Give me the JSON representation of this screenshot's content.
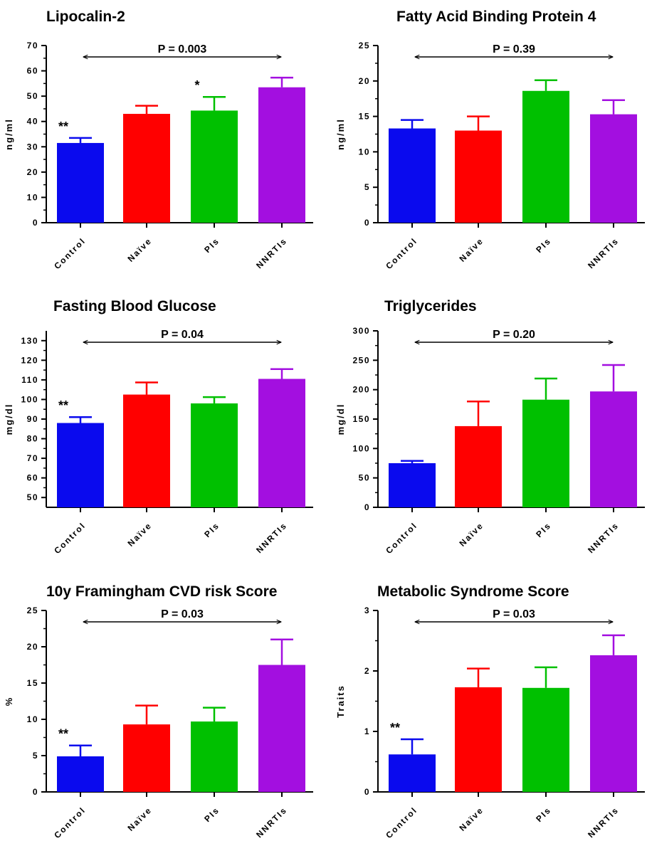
{
  "categories": [
    "Control",
    "Naïve",
    "PIs",
    "NNRTIs"
  ],
  "colors": [
    "#0a0aee",
    "#ff0000",
    "#00c000",
    "#a30fe0"
  ],
  "chart_data": [
    {
      "type": "bar",
      "title": "Lipocalin-2",
      "ylabel": "ng/ml",
      "ylim": [
        0,
        70
      ],
      "yticks": [
        0,
        10,
        20,
        30,
        40,
        50,
        60,
        70
      ],
      "categories": [
        "Control",
        "Naïve",
        "PIs",
        "NNRTIs"
      ],
      "values": [
        31.5,
        43,
        44.3,
        53.5
      ],
      "errors": [
        2,
        3.2,
        5.4,
        3.8
      ],
      "annotations": [
        "**",
        "",
        "*",
        ""
      ],
      "p_value": "P = 0.003"
    },
    {
      "type": "bar",
      "title": "Fatty Acid Binding Protein 4",
      "ylabel": "ng/ml",
      "ylim": [
        0,
        25
      ],
      "yticks": [
        0,
        5,
        10,
        15,
        20,
        25
      ],
      "categories": [
        "Control",
        "Naïve",
        "PIs",
        "NNRTIs"
      ],
      "values": [
        13.3,
        13,
        18.6,
        15.3
      ],
      "errors": [
        1.2,
        2,
        1.5,
        2
      ],
      "annotations": [
        "",
        "",
        "",
        ""
      ],
      "p_value": "P = 0.39"
    },
    {
      "type": "bar",
      "title": "Fasting Blood Glucose",
      "ylabel": "mg/dl",
      "ylim": [
        45,
        135
      ],
      "yticks": [
        50,
        60,
        70,
        80,
        90,
        100,
        110,
        120,
        130
      ],
      "categories": [
        "Control",
        "Naïve",
        "PIs",
        "NNRTIs"
      ],
      "values": [
        88,
        102.5,
        98,
        110.5
      ],
      "errors": [
        3,
        6.2,
        3.2,
        5
      ],
      "annotations": [
        "**",
        "",
        "",
        ""
      ],
      "p_value": "P = 0.04"
    },
    {
      "type": "bar",
      "title": "Triglycerides",
      "ylabel": "mg/dl",
      "ylim": [
        0,
        300
      ],
      "yticks": [
        0,
        50,
        100,
        150,
        200,
        250,
        300
      ],
      "categories": [
        "Control",
        "Naïve",
        "PIs",
        "NNRTIs"
      ],
      "values": [
        75,
        138,
        183,
        197
      ],
      "errors": [
        4,
        42,
        36,
        45
      ],
      "annotations": [
        "",
        "",
        "",
        ""
      ],
      "p_value": "P = 0.20"
    },
    {
      "type": "bar",
      "title": "10y Framingham CVD risk Score",
      "ylabel": "%",
      "ylim": [
        0,
        25
      ],
      "yticks": [
        0,
        5,
        10,
        15,
        20,
        25
      ],
      "categories": [
        "Control",
        "Naïve",
        "PIs",
        "NNRTIs"
      ],
      "values": [
        4.9,
        9.3,
        9.7,
        17.5
      ],
      "errors": [
        1.5,
        2.6,
        1.9,
        3.5
      ],
      "annotations": [
        "**",
        "",
        "",
        ""
      ],
      "p_value": "P = 0.03"
    },
    {
      "type": "bar",
      "title": "Metabolic Syndrome Score",
      "ylabel": "Traits",
      "ylim": [
        0,
        3
      ],
      "yticks": [
        0,
        1,
        2,
        3
      ],
      "categories": [
        "Control",
        "Naïve",
        "PIs",
        "NNRTIs"
      ],
      "values": [
        0.62,
        1.73,
        1.72,
        2.26
      ],
      "errors": [
        0.25,
        0.31,
        0.34,
        0.33
      ],
      "annotations": [
        "**",
        "",
        "",
        ""
      ],
      "p_value": "P = 0.03"
    }
  ]
}
